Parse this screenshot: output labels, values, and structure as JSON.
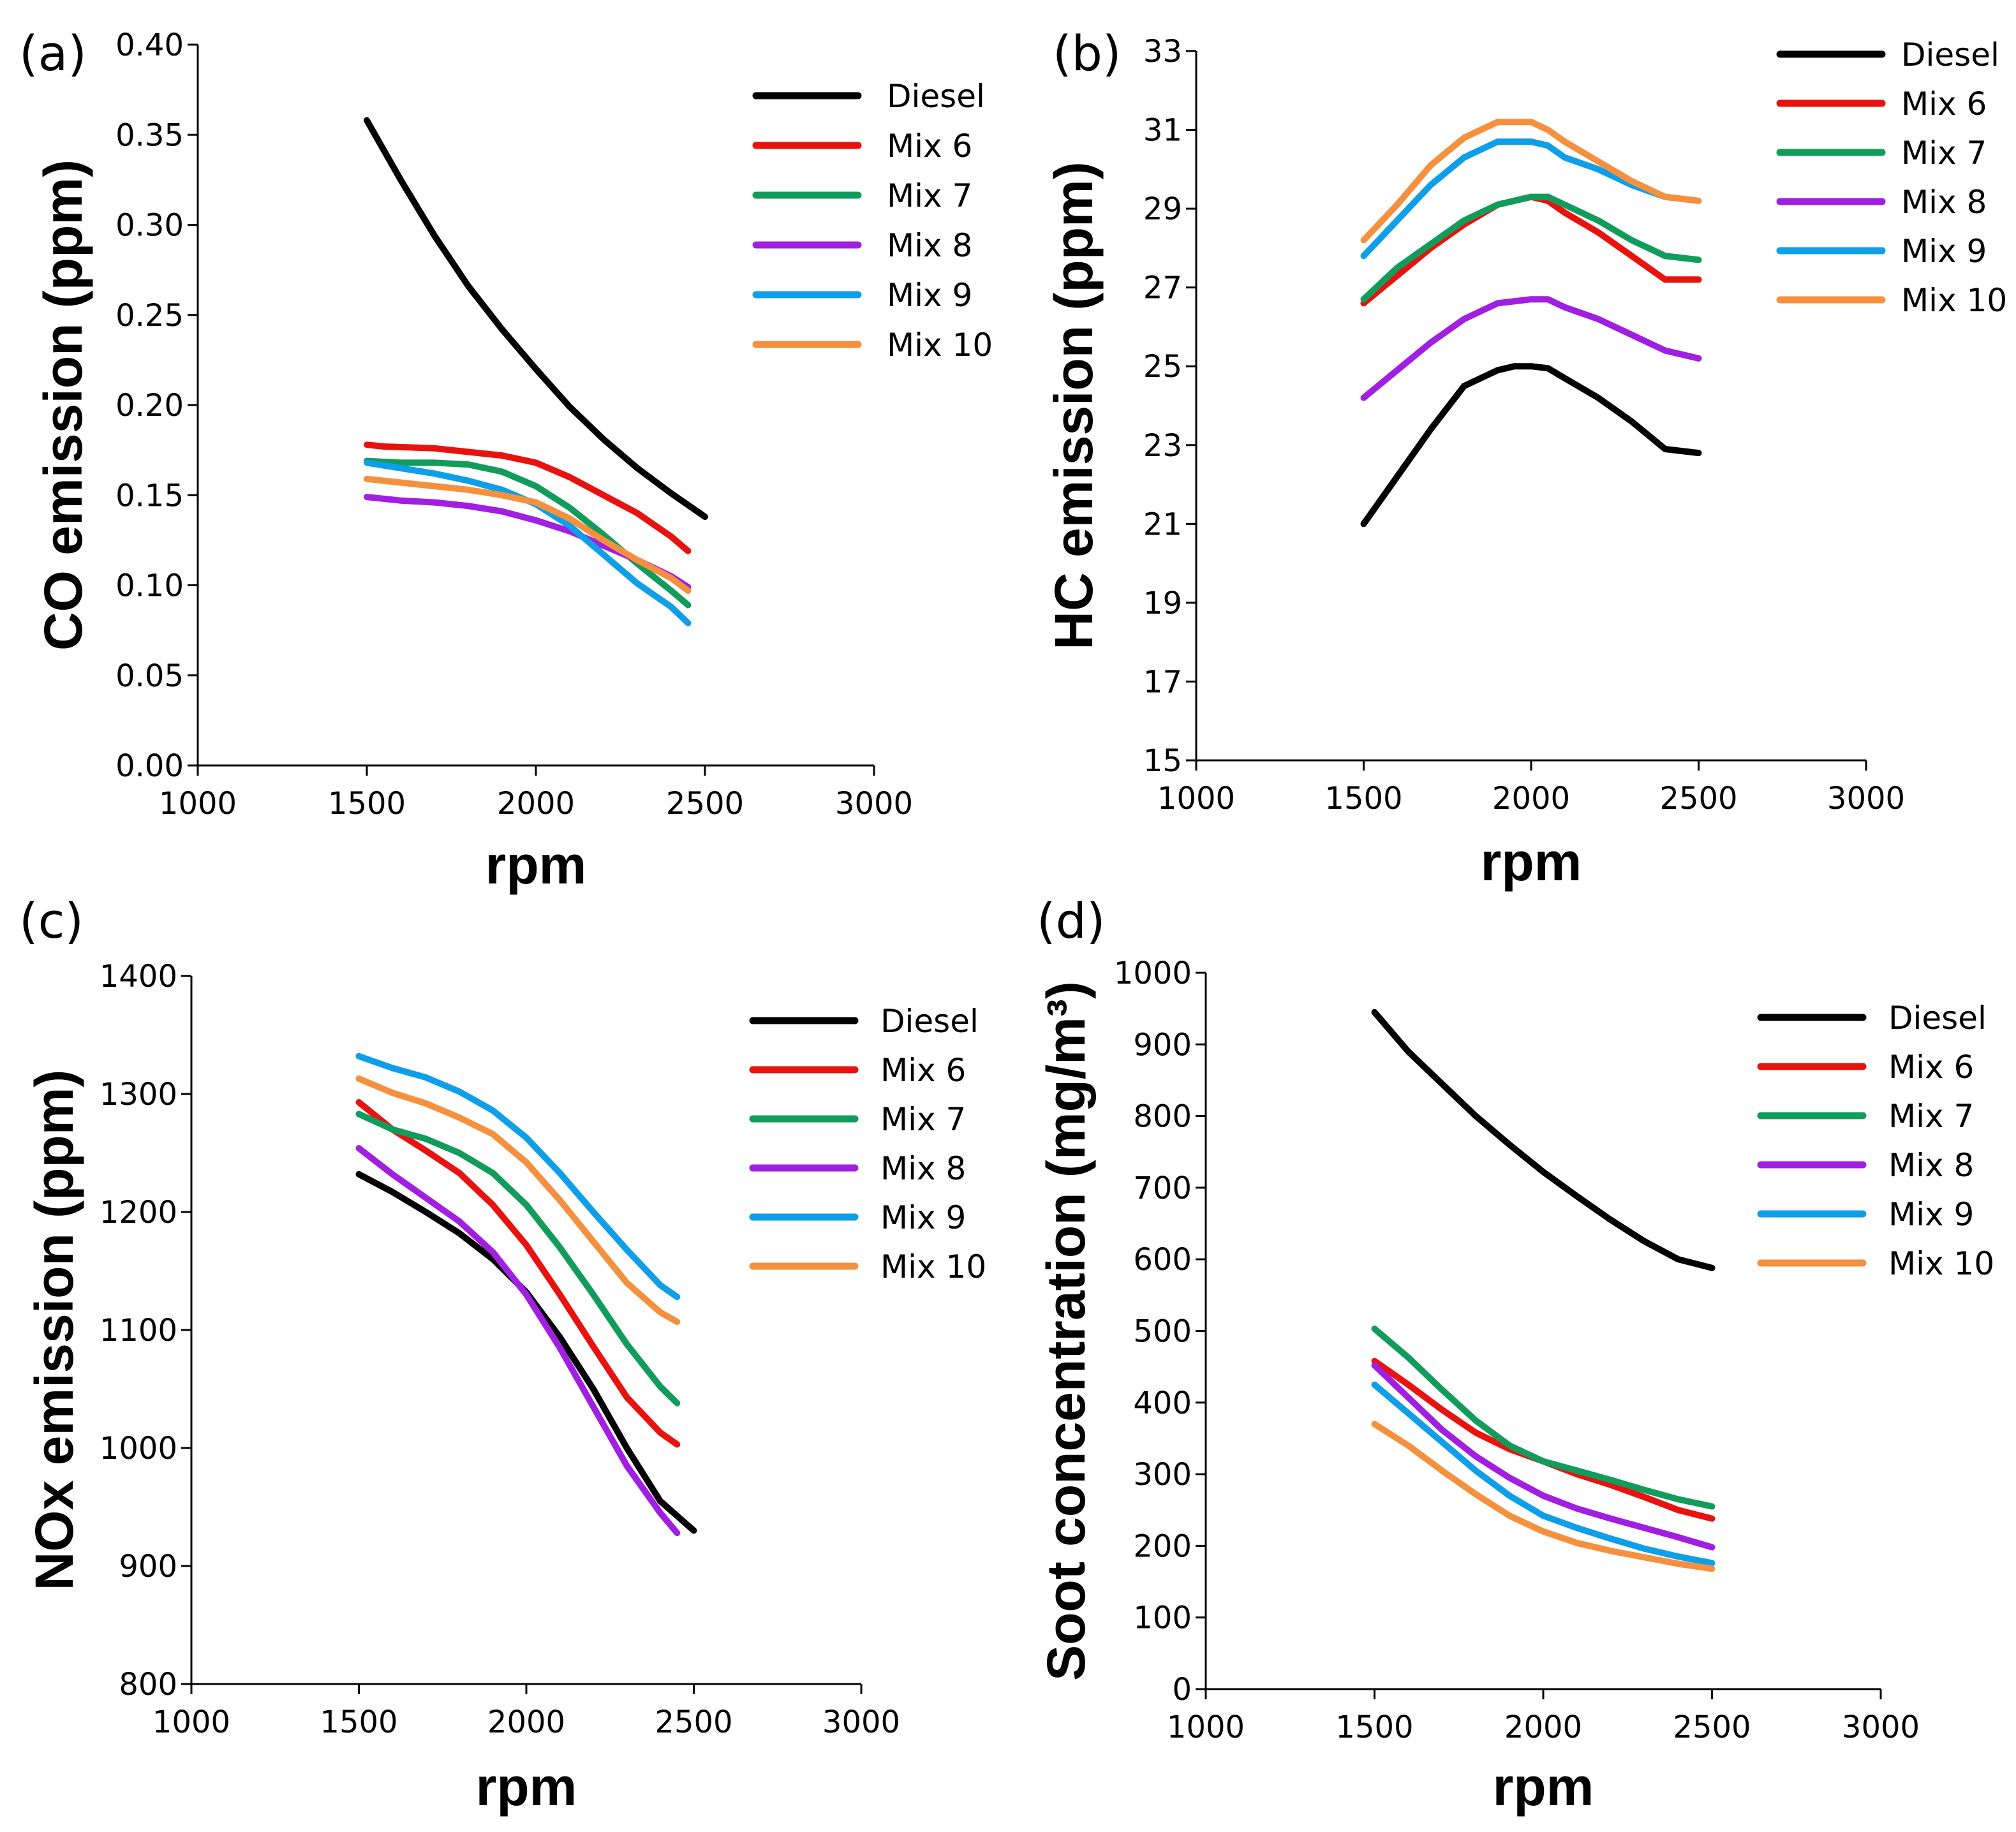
{
  "colors": {
    "Diesel": "#000000",
    "Mix 6": "#e8120f",
    "Mix 7": "#129c5c",
    "Mix 8": "#a11fe0",
    "Mix 9": "#0f9ee8",
    "Mix 10": "#f5913e"
  },
  "chart_data": [
    {
      "panel": "(a)",
      "type": "line",
      "xlabel": "rpm",
      "ylabel": "CO emission (ppm)",
      "xlim": [
        1000,
        3000
      ],
      "ylim": [
        0,
        0.4
      ],
      "xticks": [
        1000,
        1500,
        2000,
        2500,
        3000
      ],
      "xtick_labels": [
        "1000",
        "1500",
        "2000",
        "2500",
        "3000"
      ],
      "yticks": [
        0,
        0.05,
        0.1,
        0.15,
        0.2,
        0.25,
        0.3,
        0.35,
        0.4
      ],
      "ytick_labels": [
        "0.00",
        "0.05",
        "0.10",
        "0.15",
        "0.20",
        "0.25",
        "0.30",
        "0.35",
        "0.40"
      ],
      "legend": "top-right",
      "series": [
        {
          "name": "Diesel",
          "x": [
            1500,
            1600,
            1700,
            1800,
            1900,
            2000,
            2100,
            2200,
            2300,
            2400,
            2500
          ],
          "values": [
            0.358,
            0.325,
            0.294,
            0.266,
            0.242,
            0.22,
            0.199,
            0.181,
            0.165,
            0.151,
            0.138
          ]
        },
        {
          "name": "Mix 6",
          "x": [
            1500,
            1550,
            1700,
            1800,
            1900,
            2000,
            2100,
            2200,
            2300,
            2400,
            2450
          ],
          "values": [
            0.178,
            0.177,
            0.176,
            0.174,
            0.172,
            0.168,
            0.16,
            0.15,
            0.14,
            0.127,
            0.119
          ]
        },
        {
          "name": "Mix 7",
          "x": [
            1500,
            1600,
            1700,
            1800,
            1900,
            2000,
            2100,
            2200,
            2300,
            2400,
            2450
          ],
          "values": [
            0.169,
            0.168,
            0.168,
            0.167,
            0.163,
            0.155,
            0.143,
            0.128,
            0.112,
            0.097,
            0.089
          ]
        },
        {
          "name": "Mix 8",
          "x": [
            1500,
            1600,
            1700,
            1800,
            1900,
            2000,
            2100,
            2200,
            2300,
            2400,
            2450
          ],
          "values": [
            0.149,
            0.147,
            0.146,
            0.144,
            0.141,
            0.136,
            0.13,
            0.122,
            0.114,
            0.105,
            0.099
          ]
        },
        {
          "name": "Mix 9",
          "x": [
            1500,
            1600,
            1700,
            1800,
            1900,
            2000,
            2100,
            2200,
            2300,
            2400,
            2450
          ],
          "values": [
            0.168,
            0.165,
            0.162,
            0.158,
            0.153,
            0.145,
            0.133,
            0.117,
            0.101,
            0.088,
            0.079
          ]
        },
        {
          "name": "Mix 10",
          "x": [
            1500,
            1600,
            1700,
            1800,
            1900,
            2000,
            2100,
            2200,
            2300,
            2400,
            2450
          ],
          "values": [
            0.159,
            0.157,
            0.155,
            0.153,
            0.15,
            0.146,
            0.137,
            0.125,
            0.114,
            0.104,
            0.097
          ]
        }
      ]
    },
    {
      "panel": "(b)",
      "type": "line",
      "xlabel": "rpm",
      "ylabel": "HC emission (ppm)",
      "xlim": [
        1000,
        3000
      ],
      "ylim": [
        15,
        33
      ],
      "xticks": [
        1000,
        1500,
        2000,
        2500,
        3000
      ],
      "xtick_labels": [
        "1000",
        "1500",
        "2000",
        "2500",
        "3000"
      ],
      "yticks": [
        15,
        17,
        19,
        21,
        23,
        25,
        27,
        29,
        31,
        33
      ],
      "ytick_labels": [
        "15",
        "17",
        "19",
        "21",
        "23",
        "25",
        "27",
        "29",
        "31",
        "33"
      ],
      "legend": "top-right",
      "series": [
        {
          "name": "Diesel",
          "x": [
            1500,
            1600,
            1700,
            1800,
            1900,
            1950,
            2000,
            2050,
            2100,
            2200,
            2300,
            2400,
            2500
          ],
          "values": [
            21.0,
            22.2,
            23.4,
            24.5,
            24.9,
            25.0,
            25.0,
            24.95,
            24.7,
            24.2,
            23.6,
            22.9,
            22.8
          ]
        },
        {
          "name": "Mix 6",
          "x": [
            1500,
            1600,
            1700,
            1800,
            1900,
            2000,
            2050,
            2100,
            2200,
            2300,
            2400,
            2500
          ],
          "values": [
            26.6,
            27.3,
            28.0,
            28.6,
            29.1,
            29.3,
            29.2,
            28.9,
            28.4,
            27.8,
            27.2,
            27.2
          ]
        },
        {
          "name": "Mix 7",
          "x": [
            1500,
            1600,
            1700,
            1800,
            1900,
            2000,
            2050,
            2100,
            2200,
            2300,
            2400,
            2500
          ],
          "values": [
            26.7,
            27.5,
            28.1,
            28.7,
            29.1,
            29.3,
            29.3,
            29.1,
            28.7,
            28.2,
            27.8,
            27.7
          ]
        },
        {
          "name": "Mix 8",
          "x": [
            1500,
            1600,
            1700,
            1800,
            1900,
            2000,
            2050,
            2100,
            2200,
            2300,
            2400,
            2500
          ],
          "values": [
            24.2,
            24.9,
            25.6,
            26.2,
            26.6,
            26.7,
            26.7,
            26.5,
            26.2,
            25.8,
            25.4,
            25.2
          ]
        },
        {
          "name": "Mix 9",
          "x": [
            1500,
            1600,
            1700,
            1800,
            1900,
            2000,
            2050,
            2100,
            2200,
            2300,
            2400,
            2500
          ],
          "values": [
            27.8,
            28.7,
            29.6,
            30.3,
            30.7,
            30.7,
            30.6,
            30.3,
            30.0,
            29.6,
            29.3,
            29.2
          ]
        },
        {
          "name": "Mix 10",
          "x": [
            1500,
            1600,
            1700,
            1800,
            1900,
            2000,
            2050,
            2100,
            2200,
            2300,
            2400,
            2500
          ],
          "values": [
            28.2,
            29.1,
            30.1,
            30.8,
            31.2,
            31.2,
            31.0,
            30.7,
            30.2,
            29.7,
            29.3,
            29.2
          ]
        }
      ]
    },
    {
      "panel": "(c)",
      "type": "line",
      "xlabel": "rpm",
      "ylabel": "NOx emission (ppm)",
      "xlim": [
        1000,
        3000
      ],
      "ylim": [
        800,
        1400
      ],
      "xticks": [
        1000,
        1500,
        2000,
        2500,
        3000
      ],
      "xtick_labels": [
        "1000",
        "1500",
        "2000",
        "2500",
        "3000"
      ],
      "yticks": [
        800,
        900,
        1000,
        1100,
        1200,
        1300,
        1400
      ],
      "ytick_labels": [
        "800",
        "900",
        "1000",
        "1100",
        "1200",
        "1300",
        "1400"
      ],
      "legend": "top-right",
      "series": [
        {
          "name": "Diesel",
          "x": [
            1500,
            1600,
            1700,
            1800,
            1900,
            2000,
            2100,
            2200,
            2300,
            2400,
            2500
          ],
          "values": [
            1232,
            1217,
            1200,
            1182,
            1160,
            1132,
            1094,
            1050,
            1000,
            955,
            930
          ]
        },
        {
          "name": "Mix 6",
          "x": [
            1500,
            1600,
            1700,
            1800,
            1900,
            2000,
            2100,
            2200,
            2300,
            2400,
            2450
          ],
          "values": [
            1293,
            1270,
            1252,
            1233,
            1206,
            1172,
            1130,
            1086,
            1043,
            1013,
            1003
          ]
        },
        {
          "name": "Mix 7",
          "x": [
            1500,
            1600,
            1700,
            1800,
            1900,
            2000,
            2100,
            2200,
            2300,
            2400,
            2450
          ],
          "values": [
            1283,
            1270,
            1262,
            1250,
            1233,
            1206,
            1170,
            1130,
            1088,
            1052,
            1038
          ]
        },
        {
          "name": "Mix 8",
          "x": [
            1500,
            1600,
            1700,
            1800,
            1900,
            2000,
            2100,
            2200,
            2300,
            2400,
            2450
          ],
          "values": [
            1254,
            1232,
            1212,
            1192,
            1166,
            1130,
            1085,
            1035,
            985,
            945,
            928
          ]
        },
        {
          "name": "Mix 9",
          "x": [
            1500,
            1600,
            1700,
            1800,
            1900,
            2000,
            2100,
            2200,
            2300,
            2400,
            2450
          ],
          "values": [
            1332,
            1322,
            1314,
            1302,
            1286,
            1263,
            1233,
            1200,
            1168,
            1138,
            1128
          ]
        },
        {
          "name": "Mix 10",
          "x": [
            1500,
            1600,
            1700,
            1800,
            1900,
            2000,
            2100,
            2200,
            2300,
            2400,
            2450
          ],
          "values": [
            1313,
            1301,
            1292,
            1280,
            1266,
            1242,
            1210,
            1175,
            1140,
            1115,
            1107
          ]
        }
      ]
    },
    {
      "panel": "(d)",
      "type": "line",
      "xlabel": "rpm",
      "ylabel": "Soot concentration (mg/m³)",
      "xlim": [
        1000,
        3000
      ],
      "ylim": [
        0,
        1000
      ],
      "xticks": [
        1000,
        1500,
        2000,
        2500,
        3000
      ],
      "xtick_labels": [
        "1000",
        "1500",
        "2000",
        "2500",
        "3000"
      ],
      "yticks": [
        0,
        100,
        200,
        300,
        400,
        500,
        600,
        700,
        800,
        900,
        1000
      ],
      "ytick_labels": [
        "0",
        "100",
        "200",
        "300",
        "400",
        "500",
        "600",
        "700",
        "800",
        "900",
        "1000"
      ],
      "legend": "top-right",
      "series": [
        {
          "name": "Diesel",
          "x": [
            1500,
            1600,
            1700,
            1800,
            1900,
            2000,
            2100,
            2200,
            2300,
            2400,
            2500
          ],
          "values": [
            945,
            890,
            845,
            800,
            760,
            722,
            688,
            655,
            625,
            600,
            588
          ]
        },
        {
          "name": "Mix 6",
          "x": [
            1500,
            1600,
            1700,
            1800,
            1900,
            2000,
            2100,
            2200,
            2300,
            2400,
            2500
          ],
          "values": [
            458,
            425,
            390,
            358,
            335,
            318,
            300,
            285,
            268,
            250,
            238
          ]
        },
        {
          "name": "Mix 7",
          "x": [
            1500,
            1600,
            1700,
            1800,
            1900,
            2000,
            2100,
            2200,
            2300,
            2400,
            2500
          ],
          "values": [
            503,
            463,
            418,
            375,
            340,
            318,
            305,
            292,
            278,
            265,
            255
          ]
        },
        {
          "name": "Mix 8",
          "x": [
            1500,
            1600,
            1700,
            1800,
            1900,
            2000,
            2100,
            2200,
            2300,
            2400,
            2500
          ],
          "values": [
            452,
            407,
            362,
            325,
            295,
            270,
            252,
            238,
            225,
            212,
            198
          ]
        },
        {
          "name": "Mix 9",
          "x": [
            1500,
            1600,
            1700,
            1800,
            1900,
            2000,
            2100,
            2200,
            2300,
            2400,
            2500
          ],
          "values": [
            425,
            385,
            345,
            305,
            270,
            242,
            225,
            210,
            196,
            185,
            176
          ]
        },
        {
          "name": "Mix 10",
          "x": [
            1500,
            1600,
            1700,
            1800,
            1900,
            2000,
            2100,
            2200,
            2300,
            2400,
            2500
          ],
          "values": [
            370,
            340,
            305,
            272,
            242,
            220,
            204,
            193,
            184,
            175,
            168
          ]
        }
      ]
    }
  ]
}
